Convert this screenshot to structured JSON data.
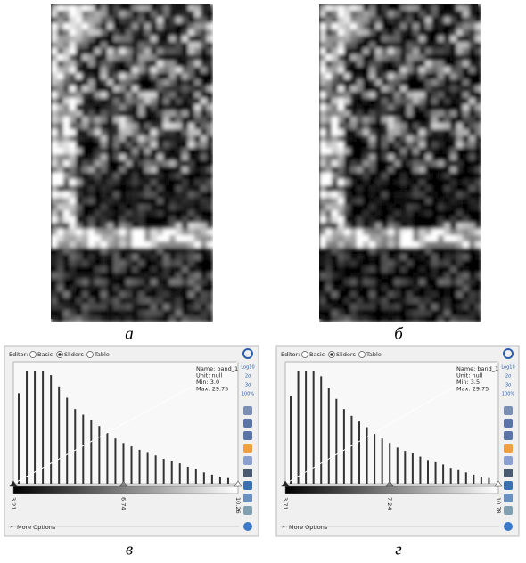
{
  "figure_labels": [
    "а",
    "б",
    "в",
    "г"
  ],
  "panels": [
    {
      "editor_label": "Editor:",
      "options": [
        "Basic",
        "Sliders",
        "Table"
      ],
      "info": [
        "Name: band_1",
        "Unit: null",
        "Min: 3.0",
        "Max: 29.75"
      ],
      "slider_labels": [
        "3.21",
        "6.74",
        "10.26"
      ],
      "toolbar": [
        "Log10",
        "2σ",
        "3σ",
        "100%"
      ],
      "histogram": [
        80,
        100,
        100,
        100,
        96,
        86,
        76,
        66,
        61,
        56,
        51,
        45,
        40,
        36,
        33,
        30,
        28,
        25,
        22,
        20,
        18,
        15,
        13,
        10,
        8,
        6,
        5
      ],
      "more_options": "More Options"
    },
    {
      "editor_label": "Editor:",
      "options": [
        "Basic",
        "Sliders",
        "Table"
      ],
      "info": [
        "Name: band_1",
        "Unit: null",
        "Min: 3.5",
        "Max: 29.75"
      ],
      "slider_labels": [
        "3.71",
        "7.24",
        "10.78"
      ],
      "toolbar": [
        "Log10",
        "2σ",
        "3σ",
        "100%"
      ],
      "histogram": [
        78,
        100,
        100,
        100,
        95,
        85,
        75,
        66,
        60,
        55,
        50,
        44,
        40,
        36,
        32,
        29,
        27,
        24,
        21,
        19,
        17,
        14,
        12,
        10,
        8,
        6,
        5
      ],
      "more_options": "More Options"
    }
  ]
}
